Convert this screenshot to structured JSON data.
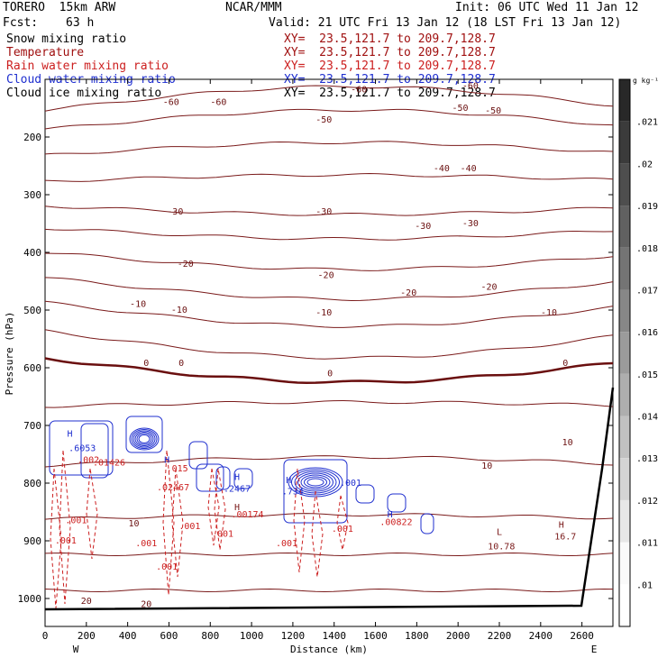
{
  "header": {
    "model": "TORERO  15km ARW",
    "center": "NCAR/MMM",
    "init": "Init: 06 UTC Wed 11 Jan 12",
    "fcst_label": "Fcst:",
    "fcst_value": "63 h",
    "valid": "Valid: 21 UTC Fri 13 Jan 12 (18 LST Fri 13 Jan 12)"
  },
  "fields": [
    {
      "name": "Snow mixing ratio",
      "xy": "XY=  23.5,121.7 to 209.7,128.7",
      "color": "#000000"
    },
    {
      "name": "Temperature",
      "xy": "XY=  23.5,121.7 to 209.7,128.7",
      "color": "#a01010"
    },
    {
      "name": "Rain water mixing ratio",
      "xy": "XY=  23.5,121.7 to 209.7,128.7",
      "color": "#cc1f1f"
    },
    {
      "name": "Cloud water mixing ratio",
      "xy": "XY=  23.5,121.7 to 209.7,128.7",
      "color": "#1f2fcf"
    },
    {
      "name": "Cloud ice mixing ratio",
      "xy": "XY=  23.5,121.7 to 209.7,128.7",
      "color": "#000000"
    }
  ],
  "colorbar": {
    "unit": "g kg⁻¹",
    "labels": [
      ".021",
      ".02",
      ".019",
      ".018",
      ".017",
      ".016",
      ".015",
      ".014",
      ".013",
      ".012",
      ".011",
      ".01"
    ]
  },
  "chart_data": {
    "type": "cross-section",
    "xlabel": "Distance (km)",
    "ylabel": "Pressure (hPa)",
    "xlim": [
      0,
      2750
    ],
    "ylim": [
      1050,
      100
    ],
    "yscale": "log",
    "x_ticks": [
      0,
      200,
      400,
      600,
      800,
      1000,
      1200,
      1400,
      1600,
      1800,
      2000,
      2200,
      2400,
      2600
    ],
    "y_ticks": [
      200,
      300,
      400,
      500,
      600,
      700,
      800,
      900,
      1000
    ],
    "x_end_labels": {
      "left": "W",
      "right": "E"
    },
    "temperature_labels": [
      {
        "text": "-60",
        "x": 610,
        "p": 140
      },
      {
        "text": "-60",
        "x": 840,
        "p": 140
      },
      {
        "text": "-60",
        "x": 1520,
        "p": 118
      },
      {
        "text": "-60",
        "x": 2060,
        "p": 112
      },
      {
        "text": "-50",
        "x": 1350,
        "p": 170
      },
      {
        "text": "-50",
        "x": 2010,
        "p": 150
      },
      {
        "text": "-50",
        "x": 2170,
        "p": 155
      },
      {
        "text": "-40",
        "x": 1920,
        "p": 255
      },
      {
        "text": "-40",
        "x": 2050,
        "p": 255
      },
      {
        "text": "-30",
        "x": 630,
        "p": 330
      },
      {
        "text": "-30",
        "x": 1350,
        "p": 330
      },
      {
        "text": "-30",
        "x": 1830,
        "p": 355
      },
      {
        "text": "-30",
        "x": 2060,
        "p": 350
      },
      {
        "text": "-20",
        "x": 680,
        "p": 420
      },
      {
        "text": "-20",
        "x": 1360,
        "p": 440
      },
      {
        "text": "-20",
        "x": 1760,
        "p": 470
      },
      {
        "text": "-20",
        "x": 2150,
        "p": 460
      },
      {
        "text": "-10",
        "x": 450,
        "p": 490
      },
      {
        "text": "-10",
        "x": 650,
        "p": 500
      },
      {
        "text": "-10",
        "x": 1350,
        "p": 505
      },
      {
        "text": "-10",
        "x": 2440,
        "p": 505
      },
      {
        "text": "0",
        "x": 490,
        "p": 592
      },
      {
        "text": "0",
        "x": 660,
        "p": 592
      },
      {
        "text": "0",
        "x": 1380,
        "p": 610
      },
      {
        "text": "0",
        "x": 2520,
        "p": 592
      },
      {
        "text": "10",
        "x": 2140,
        "p": 770
      },
      {
        "text": "10",
        "x": 2530,
        "p": 730
      },
      {
        "text": "10",
        "x": 430,
        "p": 870
      },
      {
        "text": "20",
        "x": 200,
        "p": 1005
      },
      {
        "text": "20",
        "x": 490,
        "p": 1010
      }
    ],
    "rain_labels": [
      {
        "text": ".001",
        "x": 150,
        "p": 865
      },
      {
        "text": ".001",
        "x": 100,
        "p": 900
      },
      {
        "text": ".001",
        "x": 490,
        "p": 905
      },
      {
        "text": ".001",
        "x": 590,
        "p": 945
      },
      {
        "text": ".001",
        "x": 700,
        "p": 875
      },
      {
        "text": ".001",
        "x": 860,
        "p": 888
      },
      {
        "text": ".001",
        "x": 1170,
        "p": 905
      },
      {
        "text": ".001",
        "x": 1440,
        "p": 880
      },
      {
        "text": ".02467",
        "x": 620,
        "p": 808
      },
      {
        "text": ".00174",
        "x": 980,
        "p": 855
      },
      {
        "text": ".002",
        "x": 210,
        "p": 760
      },
      {
        "text": ".01426",
        "x": 310,
        "p": 765
      },
      {
        "text": ".00822",
        "x": 1700,
        "p": 868
      },
      {
        "text": ".015",
        "x": 640,
        "p": 775
      }
    ],
    "cloud_labels": [
      {
        "text": "H",
        "x": 120,
        "p": 715
      },
      {
        "text": ".6053",
        "x": 180,
        "p": 740
      },
      {
        "text": "H",
        "x": 590,
        "p": 760
      },
      {
        "text": "H",
        "x": 930,
        "p": 790
      },
      {
        "text": ".2467",
        "x": 930,
        "p": 810
      },
      {
        "text": "H",
        "x": 1180,
        "p": 795
      },
      {
        "text": ".734",
        "x": 1200,
        "p": 815
      },
      {
        "text": ".001",
        "x": 1480,
        "p": 800
      },
      {
        "text": "H",
        "x": 1670,
        "p": 855
      }
    ],
    "extrema": [
      {
        "text": "L",
        "x": 2200,
        "p": 885
      },
      {
        "text": "10.78",
        "x": 2210,
        "p": 910
      },
      {
        "text": "H",
        "x": 2500,
        "p": 873
      },
      {
        "text": "16.7",
        "x": 2520,
        "p": 893
      },
      {
        "text": "H",
        "x": 930,
        "p": 842
      }
    ]
  }
}
